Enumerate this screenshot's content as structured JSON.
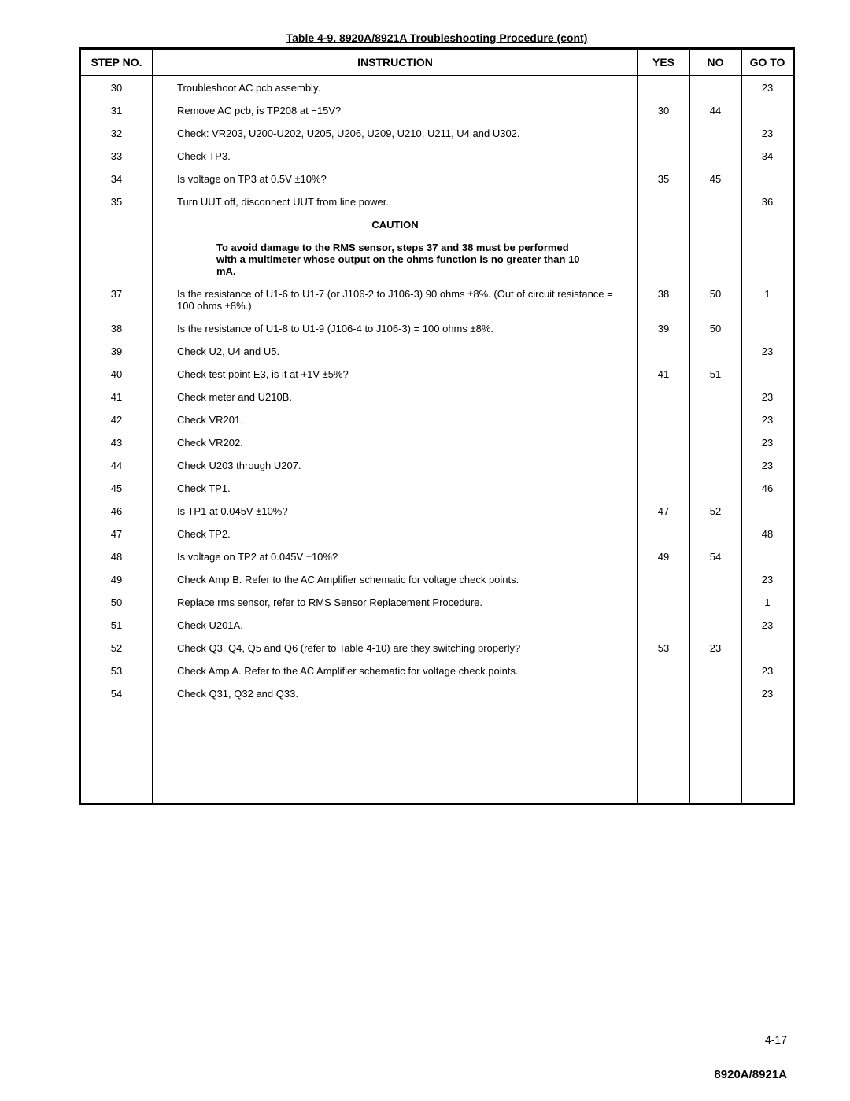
{
  "title": "Table 4-9. 8920A/8921A Troubleshooting Procedure (cont)",
  "headers": {
    "step": "STEP NO.",
    "instr": "INSTRUCTION",
    "yes": "YES",
    "no": "NO",
    "goto": "GO TO"
  },
  "caution_head": "CAUTION",
  "caution_body": "To avoid damage to the RMS sensor, steps 37 and 38 must be performed with a multimeter whose output on the ohms function is no greater than 10 mA.",
  "rows": [
    {
      "step": "30",
      "instr": "Troubleshoot AC pcb assembly.",
      "yes": "",
      "no": "",
      "goto": "23"
    },
    {
      "step": "31",
      "instr": "Remove AC pcb, is TP208 at −15V?",
      "yes": "30",
      "no": "44",
      "goto": ""
    },
    {
      "step": "32",
      "instr": "Check: VR203, U200-U202, U205, U206, U209, U210, U211, U4 and U302.",
      "yes": "",
      "no": "",
      "goto": "23"
    },
    {
      "step": "33",
      "instr": "Check TP3.",
      "yes": "",
      "no": "",
      "goto": "34"
    },
    {
      "step": "34",
      "instr": "Is voltage on TP3 at 0.5V ±10%?",
      "yes": "35",
      "no": "45",
      "goto": ""
    },
    {
      "step": "35",
      "instr": "Turn UUT off, disconnect UUT from line power.",
      "yes": "",
      "no": "",
      "goto": "36"
    },
    {
      "step": "37",
      "instr": "Is the resistance of U1-6 to U1-7 (or J106-2 to J106-3) 90 ohms ±8%. (Out of circuit resistance = 100 ohms ±8%.)",
      "yes": "38",
      "no": "50",
      "goto": "1"
    },
    {
      "step": "38",
      "instr": "Is the resistance of U1-8 to U1-9 (J106-4 to J106-3) = 100 ohms ±8%.",
      "yes": "39",
      "no": "50",
      "goto": ""
    },
    {
      "step": "39",
      "instr": "Check U2, U4 and U5.",
      "yes": "",
      "no": "",
      "goto": "23"
    },
    {
      "step": "40",
      "instr": "Check test point E3, is it at +1V ±5%?",
      "yes": "41",
      "no": "51",
      "goto": ""
    },
    {
      "step": "41",
      "instr": "Check meter and U210B.",
      "yes": "",
      "no": "",
      "goto": "23"
    },
    {
      "step": "42",
      "instr": "Check VR201.",
      "yes": "",
      "no": "",
      "goto": "23"
    },
    {
      "step": "43",
      "instr": "Check VR202.",
      "yes": "",
      "no": "",
      "goto": "23"
    },
    {
      "step": "44",
      "instr": "Check U203 through U207.",
      "yes": "",
      "no": "",
      "goto": "23"
    },
    {
      "step": "45",
      "instr": "Check TP1.",
      "yes": "",
      "no": "",
      "goto": "46"
    },
    {
      "step": "46",
      "instr": "Is TP1 at 0.045V ±10%?",
      "yes": "47",
      "no": "52",
      "goto": ""
    },
    {
      "step": "47",
      "instr": "Check TP2.",
      "yes": "",
      "no": "",
      "goto": "48"
    },
    {
      "step": "48",
      "instr": "Is voltage on TP2 at 0.045V ±10%?",
      "yes": "49",
      "no": "54",
      "goto": ""
    },
    {
      "step": "49",
      "instr": "Check Amp B. Refer to the AC Amplifier schematic for voltage check points.",
      "yes": "",
      "no": "",
      "goto": "23"
    },
    {
      "step": "50",
      "instr": "Replace rms sensor, refer to RMS Sensor Replacement Procedure.",
      "yes": "",
      "no": "",
      "goto": "1"
    },
    {
      "step": "51",
      "instr": "Check U201A.",
      "yes": "",
      "no": "",
      "goto": "23"
    },
    {
      "step": "52",
      "instr": "Check Q3, Q4, Q5 and Q6 (refer to Table 4-10) are they switching properly?",
      "yes": "53",
      "no": "23",
      "goto": ""
    },
    {
      "step": "53",
      "instr": "Check Amp A. Refer to the AC Amplifier schematic for voltage check points.",
      "yes": "",
      "no": "",
      "goto": "23"
    },
    {
      "step": "54",
      "instr": "Check Q31, Q32 and Q33.",
      "yes": "",
      "no": "",
      "goto": "23"
    }
  ],
  "page_num": "4-17",
  "model": "8920A/8921A"
}
